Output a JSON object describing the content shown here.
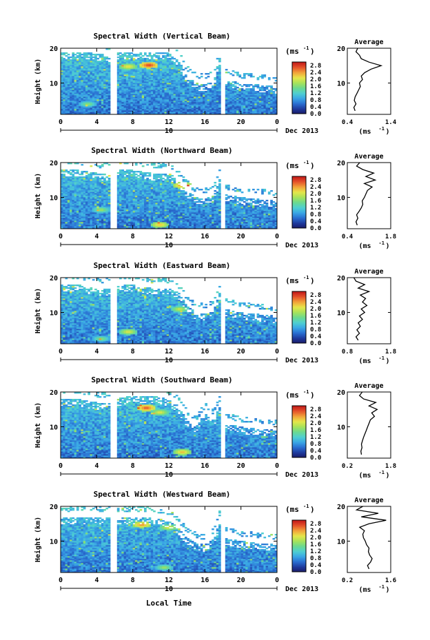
{
  "figure": {
    "xlabel": "Local Time",
    "date_label": "Dec 2013",
    "unit_label": "(ms",
    "unit_exp": "-1",
    "y_axis_label": "Height (km)",
    "avg_title": "Average",
    "avg_xlabel": "(ms",
    "colorbar_ticks": [
      "0.0",
      "0.4",
      "0.8",
      "1.2",
      "1.6",
      "2.0",
      "2.4",
      "2.8"
    ],
    "colorbar_range": [
      0.0,
      3.0
    ],
    "colormap": [
      "#1a1a66",
      "#1f3a9e",
      "#2a6fd1",
      "#3aa7e6",
      "#4fd0d0",
      "#6bd98f",
      "#a8e35a",
      "#e6e64a",
      "#f2a33a",
      "#e5532a",
      "#c21a1a"
    ]
  },
  "chart_data": [
    {
      "type": "heatmap",
      "title": "Spectral Width (Vertical Beam)",
      "x_ticks": [
        "0",
        "4",
        "8",
        "12",
        "16",
        "20",
        "0"
      ],
      "x_sub_label": "10",
      "y_ticks": [
        "10",
        "20"
      ],
      "xlim": [
        0,
        24
      ],
      "ylim": [
        1,
        20
      ],
      "gaps_hours": [
        [
          5.6,
          6.2
        ],
        [
          17.8,
          18.2
        ]
      ],
      "cloud_top_km": [
        [
          0,
          19
        ],
        [
          2,
          19
        ],
        [
          4,
          18.5
        ],
        [
          5.6,
          18
        ],
        [
          6.2,
          19
        ],
        [
          8,
          19
        ],
        [
          10,
          19
        ],
        [
          12,
          19
        ],
        [
          13,
          17
        ],
        [
          14,
          12
        ],
        [
          15,
          10
        ],
        [
          16,
          9.5
        ],
        [
          17,
          11
        ],
        [
          17.8,
          19
        ],
        [
          18.2,
          11
        ],
        [
          20,
          10
        ],
        [
          22,
          9.5
        ],
        [
          24,
          9
        ]
      ],
      "hot_spots": [
        {
          "x": 9.8,
          "y": 15.2,
          "v": 2.9
        },
        {
          "x": 7.5,
          "y": 14.8,
          "v": 2.3
        },
        {
          "x": 3.0,
          "y": 4.0,
          "v": 1.8
        }
      ],
      "profile": {
        "xlim": [
          0.4,
          1.4
        ],
        "x_ticks": [
          "0.4",
          "1.4"
        ],
        "heights": [
          2,
          3,
          4,
          5,
          6,
          7,
          8,
          9,
          10,
          11,
          12,
          13,
          14,
          15,
          16,
          17,
          18,
          19,
          20
        ],
        "values": [
          0.58,
          0.55,
          0.6,
          0.56,
          0.58,
          0.62,
          0.66,
          0.7,
          0.68,
          0.75,
          0.72,
          0.8,
          0.95,
          1.18,
          0.9,
          0.72,
          0.68,
          0.6,
          0.64
        ]
      }
    },
    {
      "type": "heatmap",
      "title": "Spectral Width (Northward Beam)",
      "x_ticks": [
        "0",
        "4",
        "8",
        "12",
        "16",
        "20",
        "0"
      ],
      "x_sub_label": "10",
      "y_ticks": [
        "10",
        "20"
      ],
      "xlim": [
        0,
        24
      ],
      "ylim": [
        1,
        20
      ],
      "gaps_hours": [
        [
          5.6,
          6.2
        ],
        [
          17.8,
          18.2
        ]
      ],
      "cloud_top_km": [
        [
          0,
          18
        ],
        [
          2,
          18
        ],
        [
          4,
          17
        ],
        [
          5.6,
          17
        ],
        [
          6.2,
          18
        ],
        [
          8,
          18
        ],
        [
          10,
          17
        ],
        [
          12,
          17
        ],
        [
          13,
          15
        ],
        [
          14,
          12
        ],
        [
          15,
          10
        ],
        [
          16,
          9.5
        ],
        [
          17,
          11
        ],
        [
          17.8,
          17
        ],
        [
          18.2,
          11
        ],
        [
          20,
          10
        ],
        [
          22,
          9.5
        ],
        [
          24,
          9
        ]
      ],
      "hot_spots": [
        {
          "x": 13.5,
          "y": 13.5,
          "v": 2.6
        },
        {
          "x": 11.0,
          "y": 2.2,
          "v": 2.4
        },
        {
          "x": 4.5,
          "y": 6.5,
          "v": 1.9
        }
      ],
      "profile": {
        "xlim": [
          0.4,
          1.8
        ],
        "x_ticks": [
          "0.4",
          "1.8"
        ],
        "heights": [
          2,
          3,
          4,
          5,
          6,
          7,
          8,
          9,
          10,
          11,
          12,
          13,
          14,
          15,
          16,
          17,
          18,
          19,
          20
        ],
        "values": [
          0.72,
          0.68,
          0.74,
          0.7,
          0.78,
          0.85,
          0.9,
          0.88,
          0.95,
          1.0,
          1.05,
          1.2,
          0.95,
          1.3,
          1.0,
          1.25,
          0.9,
          0.7,
          0.8
        ]
      }
    },
    {
      "type": "heatmap",
      "title": "Spectral Width (Eastward Beam)",
      "x_ticks": [
        "0",
        "4",
        "8",
        "12",
        "16",
        "20",
        "0"
      ],
      "x_sub_label": "10",
      "y_ticks": [
        "10",
        "20"
      ],
      "xlim": [
        0,
        24
      ],
      "ylim": [
        1,
        20
      ],
      "gaps_hours": [
        [
          5.6,
          6.2
        ],
        [
          17.8,
          18.2
        ]
      ],
      "cloud_top_km": [
        [
          0,
          18
        ],
        [
          2,
          18
        ],
        [
          4,
          17
        ],
        [
          5.6,
          17
        ],
        [
          6.2,
          18
        ],
        [
          8,
          18
        ],
        [
          10,
          17
        ],
        [
          12,
          17
        ],
        [
          13,
          16
        ],
        [
          14,
          12
        ],
        [
          15,
          10
        ],
        [
          16,
          9.5
        ],
        [
          17,
          11
        ],
        [
          17.8,
          17
        ],
        [
          18.2,
          11
        ],
        [
          20,
          10
        ],
        [
          22,
          9.5
        ],
        [
          24,
          9
        ]
      ],
      "hot_spots": [
        {
          "x": 7.5,
          "y": 4.5,
          "v": 2.2
        },
        {
          "x": 13.2,
          "y": 11.0,
          "v": 2.1
        },
        {
          "x": 4.5,
          "y": 2.5,
          "v": 1.8
        }
      ],
      "profile": {
        "xlim": [
          0.8,
          1.8
        ],
        "x_ticks": [
          "0.8",
          "1.8"
        ],
        "heights": [
          2,
          3,
          4,
          5,
          6,
          7,
          8,
          9,
          10,
          11,
          12,
          13,
          14,
          15,
          16,
          17,
          18,
          19,
          20
        ],
        "values": [
          1.05,
          1.0,
          1.08,
          1.02,
          1.1,
          1.05,
          1.15,
          1.08,
          1.2,
          1.12,
          1.25,
          1.15,
          1.22,
          1.1,
          1.3,
          1.05,
          1.2,
          1.0,
          0.95
        ]
      }
    },
    {
      "type": "heatmap",
      "title": "Spectral Width (Southward Beam)",
      "x_ticks": [
        "0",
        "4",
        "8",
        "12",
        "16",
        "20",
        "0"
      ],
      "x_sub_label": "10",
      "y_ticks": [
        "10",
        "20"
      ],
      "xlim": [
        0,
        24
      ],
      "ylim": [
        1,
        20
      ],
      "gaps_hours": [
        [
          5.6,
          6.2
        ],
        [
          17.8,
          18.2
        ]
      ],
      "cloud_top_km": [
        [
          0,
          18
        ],
        [
          2,
          18
        ],
        [
          4,
          17
        ],
        [
          5.6,
          17
        ],
        [
          6.2,
          18
        ],
        [
          8,
          19
        ],
        [
          10,
          19
        ],
        [
          12,
          18
        ],
        [
          13,
          16
        ],
        [
          14,
          12
        ],
        [
          15,
          10
        ],
        [
          16,
          14
        ],
        [
          17,
          12
        ],
        [
          17.8,
          17
        ],
        [
          18.2,
          11
        ],
        [
          20,
          10
        ],
        [
          22,
          9.5
        ],
        [
          24,
          9
        ]
      ],
      "hot_spots": [
        {
          "x": 9.5,
          "y": 15.5,
          "v": 2.8
        },
        {
          "x": 13.5,
          "y": 2.8,
          "v": 2.4
        },
        {
          "x": 11.0,
          "y": 14.2,
          "v": 2.2
        }
      ],
      "profile": {
        "xlim": [
          0.2,
          1.8
        ],
        "x_ticks": [
          "0.2",
          "1.8"
        ],
        "heights": [
          2,
          3,
          4,
          5,
          6,
          7,
          8,
          9,
          10,
          11,
          12,
          13,
          14,
          15,
          16,
          17,
          18,
          19,
          20
        ],
        "values": [
          0.72,
          0.7,
          0.74,
          0.72,
          0.76,
          0.8,
          0.85,
          0.9,
          0.95,
          1.0,
          1.05,
          1.2,
          1.1,
          1.3,
          1.0,
          1.25,
          0.8,
          0.65,
          0.75
        ]
      }
    },
    {
      "type": "heatmap",
      "title": "Spectral Width (Westward Beam)",
      "x_ticks": [
        "0",
        "4",
        "8",
        "12",
        "16",
        "20",
        "0"
      ],
      "x_sub_label": "10",
      "y_ticks": [
        "10",
        "20"
      ],
      "xlim": [
        0,
        24
      ],
      "ylim": [
        1,
        20
      ],
      "gaps_hours": [
        [
          5.6,
          6.2
        ],
        [
          17.8,
          18.2
        ]
      ],
      "cloud_top_km": [
        [
          0,
          17
        ],
        [
          2,
          17
        ],
        [
          4,
          17
        ],
        [
          5.6,
          17
        ],
        [
          6.2,
          17
        ],
        [
          8,
          17
        ],
        [
          10,
          17
        ],
        [
          12,
          16
        ],
        [
          13,
          14
        ],
        [
          14,
          11
        ],
        [
          15,
          9.5
        ],
        [
          16,
          9
        ],
        [
          17,
          11
        ],
        [
          17.8,
          17
        ],
        [
          18.2,
          11
        ],
        [
          20,
          10
        ],
        [
          22,
          9.5
        ],
        [
          24,
          9
        ]
      ],
      "hot_spots": [
        {
          "x": 9.0,
          "y": 14.8,
          "v": 2.6
        },
        {
          "x": 12.0,
          "y": 14.0,
          "v": 2.2
        },
        {
          "x": 11.5,
          "y": 2.5,
          "v": 1.9
        }
      ],
      "profile": {
        "xlim": [
          0.2,
          1.6
        ],
        "x_ticks": [
          "0.2",
          "1.6"
        ],
        "heights": [
          2,
          3,
          4,
          5,
          6,
          7,
          8,
          9,
          10,
          11,
          12,
          13,
          14,
          15,
          16,
          17,
          18,
          19,
          20
        ],
        "values": [
          0.9,
          0.85,
          0.95,
          1.0,
          0.92,
          0.88,
          0.9,
          0.82,
          0.78,
          0.72,
          0.7,
          0.75,
          0.6,
          0.9,
          1.45,
          0.65,
          1.2,
          0.5,
          0.7
        ]
      }
    }
  ]
}
